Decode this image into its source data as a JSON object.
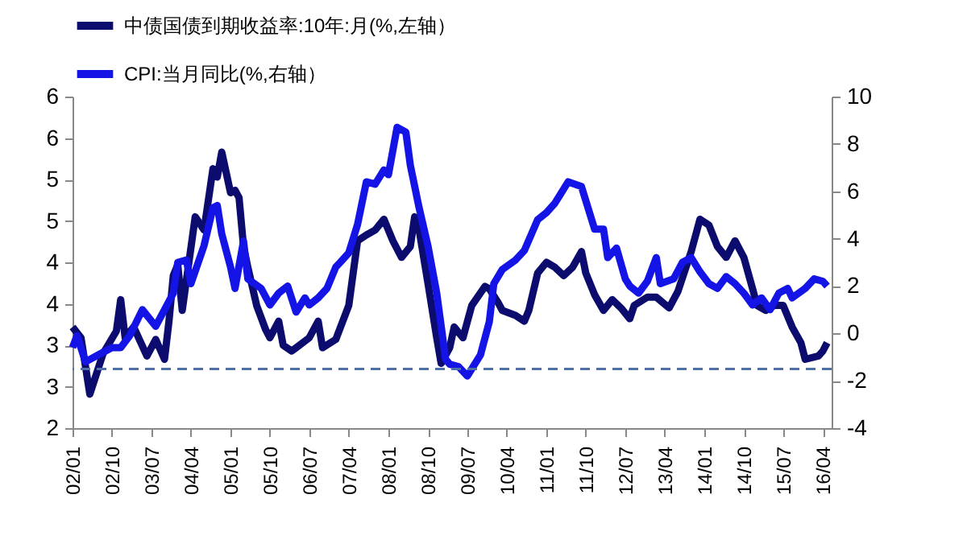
{
  "chart_data": {
    "type": "line",
    "legend": "top",
    "line_style": "solid",
    "xlim": [
      "2002-01",
      "2016-06"
    ],
    "xticks": [
      {
        "value": "2002-01",
        "label": "02/01"
      },
      {
        "value": "2002-10",
        "label": "02/10"
      },
      {
        "value": "2003-07",
        "label": "03/07"
      },
      {
        "value": "2004-04",
        "label": "04/04"
      },
      {
        "value": "2005-01",
        "label": "05/01"
      },
      {
        "value": "2005-10",
        "label": "05/10"
      },
      {
        "value": "2006-07",
        "label": "06/07"
      },
      {
        "value": "2007-04",
        "label": "07/04"
      },
      {
        "value": "2008-01",
        "label": "08/01"
      },
      {
        "value": "2008-10",
        "label": "08/10"
      },
      {
        "value": "2009-07",
        "label": "09/07"
      },
      {
        "value": "2010-04",
        "label": "10/04"
      },
      {
        "value": "2011-01",
        "label": "11/01"
      },
      {
        "value": "2011-10",
        "label": "11/10"
      },
      {
        "value": "2012-07",
        "label": "12/07"
      },
      {
        "value": "2013-04",
        "label": "13/04"
      },
      {
        "value": "2014-01",
        "label": "14/01"
      },
      {
        "value": "2014-10",
        "label": "14/10"
      },
      {
        "value": "2015-07",
        "label": "15/07"
      },
      {
        "value": "2016-04",
        "label": "16/04"
      }
    ],
    "ylim": [
      2,
      6
    ],
    "yticks": [
      2,
      {
        "value": 2.5,
        "label": "3"
      },
      3,
      {
        "value": 3.5,
        "label": "4"
      },
      4,
      {
        "value": 4.5,
        "label": "5"
      },
      5,
      {
        "value": 5.5,
        "label": "6"
      },
      6
    ],
    "y2lim": [
      -4,
      10
    ],
    "y2ticks": [
      -4,
      -2,
      0,
      2,
      4,
      6,
      8,
      10
    ],
    "ref_lines": [
      {
        "axis": "y2",
        "value": -1.5,
        "color": "#4f6fa8",
        "line_style": "dashed"
      }
    ],
    "series": [
      {
        "name": "中债国债到期收益率:10年:月(%,左轴）",
        "color": "#0c0c6e",
        "axis": "y",
        "x": [
          "2002-01",
          "2002-03",
          "2002-05",
          "2002-08",
          "2002-11",
          "2002-12",
          "2003-01",
          "2003-03",
          "2003-06",
          "2003-08",
          "2003-10",
          "2003-11",
          "2003-12",
          "2004-01",
          "2004-02",
          "2004-05",
          "2004-07",
          "2004-09",
          "2004-10",
          "2004-11",
          "2005-01",
          "2005-02",
          "2005-03",
          "2005-04",
          "2005-05",
          "2005-07",
          "2005-09",
          "2005-10",
          "2005-12",
          "2006-01",
          "2006-03",
          "2006-04",
          "2006-07",
          "2006-09",
          "2006-10",
          "2007-01",
          "2007-04",
          "2007-06",
          "2007-08",
          "2007-10",
          "2007-12",
          "2008-02",
          "2008-04",
          "2008-06",
          "2008-07",
          "2008-08",
          "2008-10",
          "2008-12",
          "2009-01",
          "2009-03",
          "2009-04",
          "2009-06",
          "2009-08",
          "2009-11",
          "2009-12",
          "2010-02",
          "2010-03",
          "2010-06",
          "2010-08",
          "2010-09",
          "2010-11",
          "2011-01",
          "2011-03",
          "2011-05",
          "2011-07",
          "2011-09",
          "2011-10",
          "2011-12",
          "2012-02",
          "2012-04",
          "2012-06",
          "2012-08",
          "2012-09",
          "2012-12",
          "2013-02",
          "2013-05",
          "2013-07",
          "2013-10",
          "2013-12",
          "2014-02",
          "2014-04",
          "2014-06",
          "2014-08",
          "2014-10",
          "2014-12",
          "2015-01",
          "2015-03",
          "2015-05",
          "2015-07",
          "2015-09",
          "2015-11",
          "2015-12",
          "2016-03",
          "2016-04",
          "2016-05"
        ],
        "values": [
          3.22,
          3.09,
          2.41,
          2.9,
          3.17,
          3.55,
          3.09,
          3.22,
          2.87,
          3.07,
          2.83,
          3.29,
          3.84,
          3.97,
          3.42,
          4.55,
          4.39,
          5.13,
          5.03,
          5.33,
          4.84,
          4.87,
          4.78,
          4.19,
          3.94,
          3.48,
          3.19,
          3.09,
          3.29,
          3.0,
          2.93,
          2.97,
          3.09,
          3.29,
          2.97,
          3.07,
          3.48,
          4.26,
          4.33,
          4.39,
          4.52,
          4.26,
          4.06,
          4.19,
          4.55,
          4.39,
          3.75,
          3.09,
          2.78,
          2.97,
          3.22,
          3.09,
          3.48,
          3.71,
          3.68,
          3.51,
          3.42,
          3.36,
          3.29,
          3.42,
          3.87,
          4.0,
          3.94,
          3.84,
          3.94,
          4.13,
          3.87,
          3.61,
          3.42,
          3.55,
          3.45,
          3.32,
          3.48,
          3.58,
          3.58,
          3.45,
          3.65,
          4.13,
          4.52,
          4.45,
          4.19,
          4.06,
          4.26,
          4.06,
          3.68,
          3.48,
          3.42,
          3.48,
          3.48,
          3.22,
          3.03,
          2.83,
          2.87,
          2.93,
          3.03
        ]
      },
      {
        "name": "CPI:当月同比(%,右轴）",
        "color": "#1414e6",
        "axis": "y2",
        "x": [
          "2002-01",
          "2002-02",
          "2002-04",
          "2002-07",
          "2002-10",
          "2002-12",
          "2003-02",
          "2003-05",
          "2003-08",
          "2003-10",
          "2003-12",
          "2004-01",
          "2004-03",
          "2004-04",
          "2004-07",
          "2004-09",
          "2004-10",
          "2004-11",
          "2005-01",
          "2005-02",
          "2005-04",
          "2005-05",
          "2005-08",
          "2005-10",
          "2005-12",
          "2006-02",
          "2006-04",
          "2006-06",
          "2006-07",
          "2006-09",
          "2006-11",
          "2007-01",
          "2007-02",
          "2007-04",
          "2007-06",
          "2007-08",
          "2007-10",
          "2007-12",
          "2008-01",
          "2008-03",
          "2008-05",
          "2008-06",
          "2008-08",
          "2008-10",
          "2008-12",
          "2009-02",
          "2009-03",
          "2009-05",
          "2009-07",
          "2009-10",
          "2009-12",
          "2010-01",
          "2010-03",
          "2010-06",
          "2010-08",
          "2010-11",
          "2011-01",
          "2011-03",
          "2011-06",
          "2011-09",
          "2011-12",
          "2012-02",
          "2012-03",
          "2012-05",
          "2012-07",
          "2012-08",
          "2012-10",
          "2012-12",
          "2013-02",
          "2013-03",
          "2013-06",
          "2013-08",
          "2013-10",
          "2013-12",
          "2014-02",
          "2014-04",
          "2014-06",
          "2014-08",
          "2014-10",
          "2014-12",
          "2015-02",
          "2015-04",
          "2015-06",
          "2015-08",
          "2015-09",
          "2015-12",
          "2016-02",
          "2016-04",
          "2016-05"
        ],
        "values": [
          -0.6,
          -0.1,
          -1.2,
          -0.9,
          -0.6,
          -0.6,
          -0.1,
          1.0,
          0.3,
          1.0,
          1.7,
          3.0,
          3.1,
          2.1,
          3.7,
          5.3,
          5.4,
          4.2,
          2.8,
          1.9,
          3.9,
          2.3,
          1.9,
          1.2,
          1.7,
          2.0,
          0.9,
          1.5,
          1.2,
          1.5,
          1.9,
          2.8,
          3.0,
          3.4,
          4.6,
          6.4,
          6.3,
          6.9,
          6.7,
          8.7,
          8.5,
          7.1,
          5.3,
          3.7,
          1.7,
          -1.1,
          -1.3,
          -1.4,
          -1.8,
          -0.9,
          0.5,
          2.1,
          2.7,
          3.1,
          3.5,
          4.8,
          5.1,
          5.5,
          6.4,
          6.2,
          4.4,
          4.4,
          3.2,
          3.6,
          2.3,
          2.0,
          1.7,
          2.2,
          3.2,
          2.1,
          2.3,
          3.0,
          3.2,
          2.6,
          2.1,
          1.9,
          2.4,
          2.1,
          1.7,
          1.2,
          1.5,
          1.0,
          1.7,
          1.9,
          1.5,
          1.9,
          2.3,
          2.2,
          2.0
        ]
      }
    ]
  }
}
